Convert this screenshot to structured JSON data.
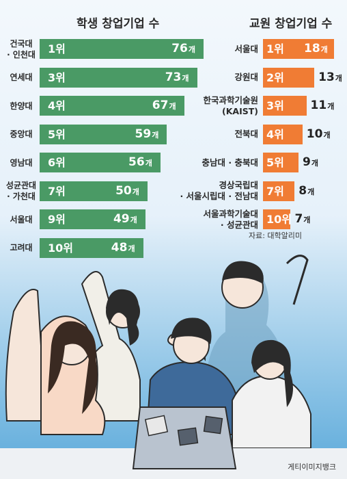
{
  "chart_data": [
    {
      "type": "bar",
      "title": "학생 창업기업 수",
      "categories": [
        "건국대\n· 인천대",
        "연세대",
        "한양대",
        "중앙대",
        "영남대",
        "성균관대\n· 가천대",
        "서울대",
        "고려대"
      ],
      "ranks": [
        "1위",
        "3위",
        "4위",
        "5위",
        "6위",
        "7위",
        "9위",
        "10위"
      ],
      "values": [
        76,
        73,
        67,
        59,
        56,
        50,
        49,
        48
      ],
      "unit": "개",
      "color": "#4a9a65"
    },
    {
      "type": "bar",
      "title": "교원 창업기업 수",
      "categories": [
        "서울대",
        "강원대",
        "한국과학기술원\n(KAIST)",
        "전북대",
        "충남대 · 충북대",
        "경상국립대\n· 서울시립대 · 전남대",
        "서울과학기술대\n· 성균관대"
      ],
      "ranks": [
        "1위",
        "2위",
        "3위",
        "4위",
        "5위",
        "7위",
        "10위"
      ],
      "values": [
        18,
        13,
        11,
        10,
        9,
        8,
        7
      ],
      "unit": "개",
      "color": "#f07c34"
    }
  ],
  "source": "자료: 대학알리미",
  "credit": "게티이미지뱅크",
  "illustration": "illustration-students-cheering-around-laptop"
}
